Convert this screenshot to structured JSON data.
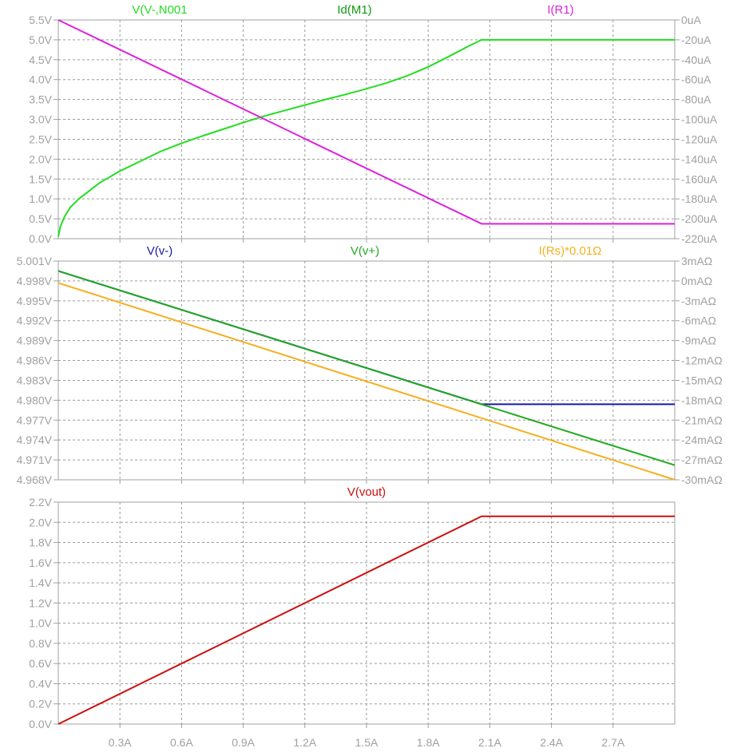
{
  "chart_data": [
    {
      "type": "line",
      "x_ticks": [
        0.3,
        0.6,
        0.9,
        1.2,
        1.5,
        1.8,
        2.1,
        2.4,
        2.7
      ],
      "x_tick_labels": [
        "0.3A",
        "0.6A",
        "0.9A",
        "1.2A",
        "1.5A",
        "1.8A",
        "2.1A",
        "2.4A",
        "2.7A"
      ],
      "xlim": [
        0,
        3.0
      ],
      "ylim_left": [
        0,
        5.5
      ],
      "ylim_right": [
        -220,
        0
      ],
      "y_ticks_left": [
        0,
        0.5,
        1.0,
        1.5,
        2.0,
        2.5,
        3.0,
        3.5,
        4.0,
        4.5,
        5.0,
        5.5
      ],
      "y_tick_labels_left": [
        "0.0V",
        "0.5V",
        "1.0V",
        "1.5V",
        "2.0V",
        "2.5V",
        "3.0V",
        "3.5V",
        "4.0V",
        "4.5V",
        "5.0V",
        "5.5V"
      ],
      "y_ticks_right": [
        -220,
        -200,
        -180,
        -160,
        -140,
        -120,
        -100,
        -80,
        -60,
        -40,
        -20,
        0
      ],
      "y_tick_labels_right": [
        "-220uA",
        "-200uA",
        "-180uA",
        "-160uA",
        "-140uA",
        "-120uA",
        "-100uA",
        "-80uA",
        "-60uA",
        "-40uA",
        "-20uA",
        "0uA"
      ],
      "grid": true,
      "series": [
        {
          "name": "V(V-,N001",
          "color": "#22dd22",
          "axis": "left",
          "x": [
            0,
            0.01,
            0.03,
            0.06,
            0.1,
            0.15,
            0.2,
            0.3,
            0.4,
            0.5,
            0.6,
            0.7,
            0.8,
            0.9,
            1.0,
            1.1,
            1.2,
            1.3,
            1.4,
            1.5,
            1.6,
            1.7,
            1.8,
            1.9,
            2.0,
            2.06,
            2.2,
            2.4,
            2.6,
            2.8,
            3.0
          ],
          "values": [
            0.05,
            0.3,
            0.55,
            0.8,
            1.0,
            1.2,
            1.4,
            1.7,
            1.95,
            2.2,
            2.4,
            2.58,
            2.75,
            2.92,
            3.08,
            3.22,
            3.36,
            3.5,
            3.63,
            3.77,
            3.92,
            4.1,
            4.32,
            4.58,
            4.85,
            5.0,
            5.0,
            5.0,
            5.0,
            5.0,
            5.0
          ]
        },
        {
          "name": "Id(M1)",
          "color": "#119911",
          "axis": "right",
          "x": [
            0,
            3.0
          ],
          "values": [
            0,
            0
          ]
        },
        {
          "name": "I(R1)",
          "color": "#dd22dd",
          "axis": "right",
          "x": [
            0,
            2.06,
            3.0
          ],
          "values": [
            0,
            -205,
            -205
          ]
        }
      ]
    },
    {
      "type": "line",
      "x_ticks": [
        0.3,
        0.6,
        0.9,
        1.2,
        1.5,
        1.8,
        2.1,
        2.4,
        2.7
      ],
      "xlim": [
        0,
        3.0
      ],
      "ylim_left": [
        4.968,
        5.001
      ],
      "ylim_right": [
        -30,
        3
      ],
      "y_ticks_left": [
        4.968,
        4.971,
        4.974,
        4.977,
        4.98,
        4.983,
        4.986,
        4.989,
        4.992,
        4.995,
        4.998,
        5.001
      ],
      "y_tick_labels_left": [
        "4.968V",
        "4.971V",
        "4.974V",
        "4.977V",
        "4.980V",
        "4.983V",
        "4.986V",
        "4.989V",
        "4.992V",
        "4.995V",
        "4.998V",
        "5.001V"
      ],
      "y_ticks_right": [
        -30,
        -27,
        -24,
        -21,
        -18,
        -15,
        -12,
        -9,
        -6,
        -3,
        0,
        3
      ],
      "y_tick_labels_right": [
        "-30mAΩ",
        "-27mAΩ",
        "-24mAΩ",
        "-21mAΩ",
        "-18mAΩ",
        "-15mAΩ",
        "-12mAΩ",
        "-9mAΩ",
        "-6mAΩ",
        "-3mAΩ",
        "0mAΩ",
        "3mAΩ"
      ],
      "grid": true,
      "series": [
        {
          "name": "V(v-)",
          "color": "#1a1aaa",
          "axis": "left",
          "x": [
            0,
            2.06,
            3.0
          ],
          "values": [
            4.9995,
            4.9794,
            4.9794
          ]
        },
        {
          "name": "V(v+)",
          "color": "#22aa22",
          "axis": "left",
          "x": [
            0,
            3.0
          ],
          "values": [
            4.9995,
            4.9702
          ]
        },
        {
          "name": "I(Rs)*0.01Ω",
          "color": "#f5b020",
          "axis": "right",
          "x": [
            0,
            3.0
          ],
          "values": [
            -0.3,
            -30
          ]
        }
      ]
    },
    {
      "type": "line",
      "x_ticks": [
        0.3,
        0.6,
        0.9,
        1.2,
        1.5,
        1.8,
        2.1,
        2.4,
        2.7
      ],
      "xlim": [
        0,
        3.0
      ],
      "ylim_left": [
        0,
        2.2
      ],
      "y_ticks_left": [
        0,
        0.2,
        0.4,
        0.6,
        0.8,
        1.0,
        1.2,
        1.4,
        1.6,
        1.8,
        2.0,
        2.2
      ],
      "y_tick_labels_left": [
        "0.0V",
        "0.2V",
        "0.4V",
        "0.6V",
        "0.8V",
        "1.0V",
        "1.2V",
        "1.4V",
        "1.6V",
        "1.8V",
        "2.0V",
        "2.2V"
      ],
      "grid": true,
      "series": [
        {
          "name": "V(vout)",
          "color": "#cc1111",
          "axis": "left",
          "x": [
            0,
            2.06,
            3.0
          ],
          "values": [
            0,
            2.06,
            2.06
          ]
        }
      ]
    }
  ]
}
